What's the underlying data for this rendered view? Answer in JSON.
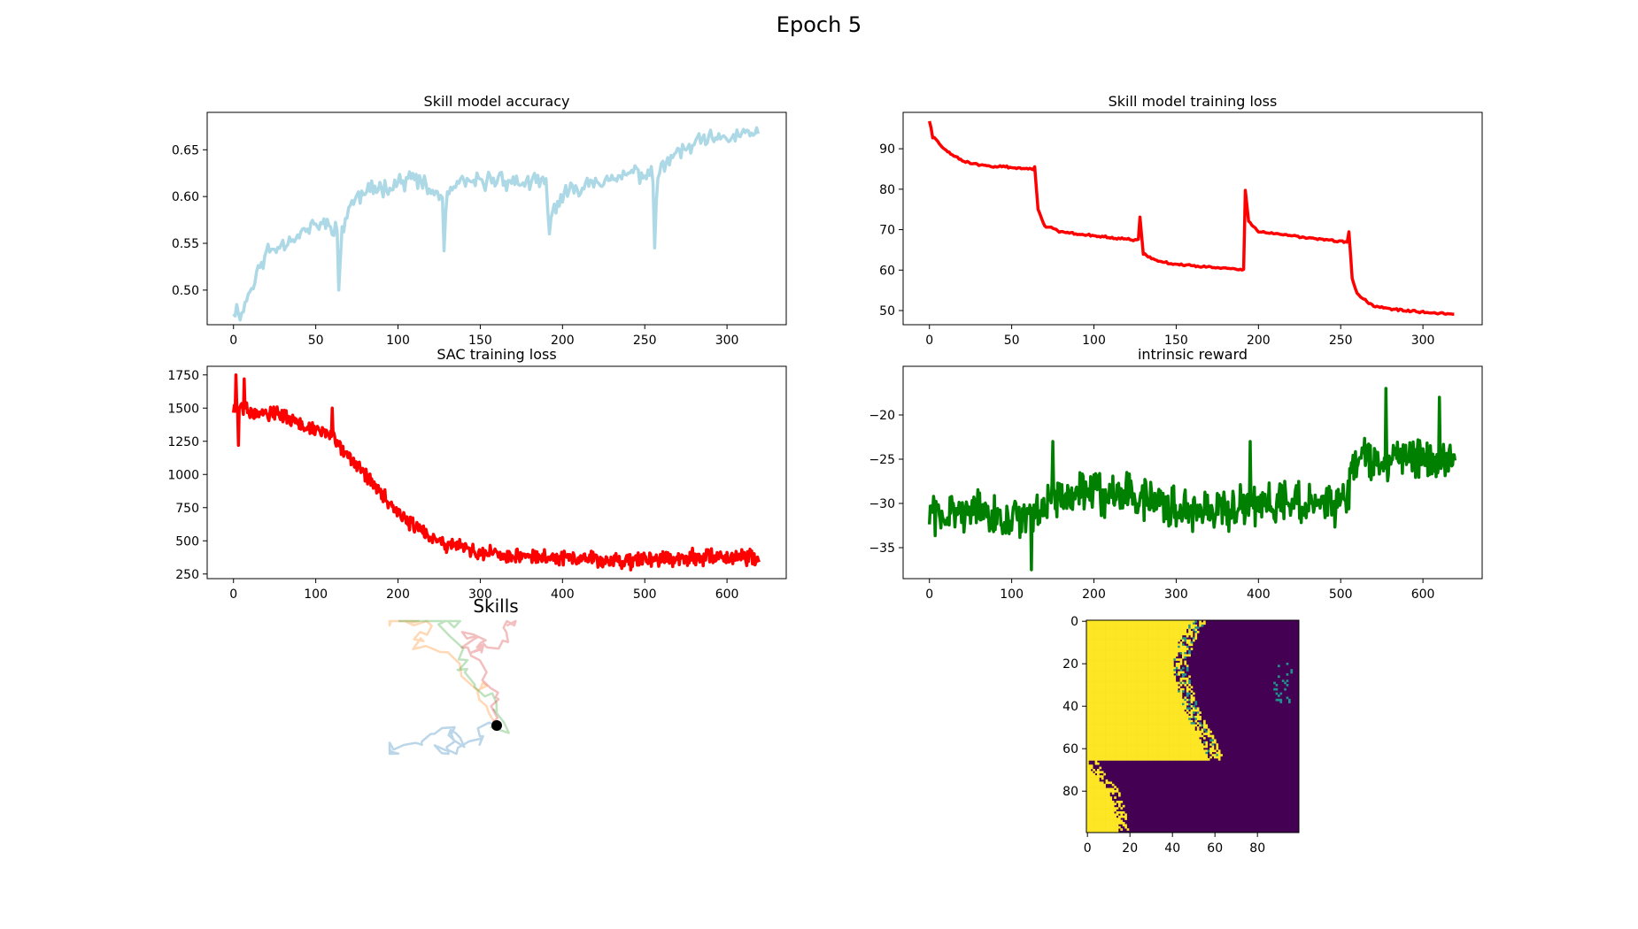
{
  "figure": {
    "title": "Epoch 5"
  },
  "chart_data": [
    {
      "id": "acc",
      "type": "line",
      "title": "Skill model accuracy",
      "color": "#add8e6",
      "xlim": [
        -16,
        336
      ],
      "ylim": [
        0.463,
        0.69
      ],
      "xticks": [
        0,
        50,
        100,
        150,
        200,
        250,
        300
      ],
      "yticks": [
        0.5,
        0.55,
        0.6,
        0.65
      ],
      "ytick_labels": [
        "0.50",
        "0.55",
        "0.60",
        "0.65"
      ],
      "n": 320,
      "keypoints": [
        [
          0,
          0.48
        ],
        [
          5,
          0.475
        ],
        [
          10,
          0.5
        ],
        [
          15,
          0.52
        ],
        [
          20,
          0.54
        ],
        [
          30,
          0.55
        ],
        [
          40,
          0.56
        ],
        [
          45,
          0.565
        ],
        [
          50,
          0.57
        ],
        [
          60,
          0.57
        ],
        [
          63,
          0.565
        ],
        [
          64,
          0.5
        ],
        [
          66,
          0.56
        ],
        [
          70,
          0.59
        ],
        [
          80,
          0.605
        ],
        [
          90,
          0.61
        ],
        [
          100,
          0.615
        ],
        [
          110,
          0.62
        ],
        [
          120,
          0.605
        ],
        [
          127,
          0.6
        ],
        [
          128,
          0.545
        ],
        [
          130,
          0.605
        ],
        [
          140,
          0.615
        ],
        [
          150,
          0.615
        ],
        [
          160,
          0.62
        ],
        [
          170,
          0.615
        ],
        [
          180,
          0.615
        ],
        [
          190,
          0.615
        ],
        [
          192,
          0.56
        ],
        [
          195,
          0.59
        ],
        [
          200,
          0.6
        ],
        [
          210,
          0.61
        ],
        [
          220,
          0.62
        ],
        [
          230,
          0.615
        ],
        [
          240,
          0.625
        ],
        [
          250,
          0.625
        ],
        [
          255,
          0.62
        ],
        [
          256,
          0.545
        ],
        [
          258,
          0.625
        ],
        [
          265,
          0.64
        ],
        [
          275,
          0.65
        ],
        [
          285,
          0.66
        ],
        [
          295,
          0.66
        ],
        [
          305,
          0.665
        ],
        [
          319,
          0.67
        ]
      ],
      "noise": 0.009,
      "spikes": [
        [
          64,
          0.5
        ],
        [
          128,
          0.542
        ],
        [
          192,
          0.56
        ],
        [
          256,
          0.545
        ]
      ],
      "seed": 11
    },
    {
      "id": "loss",
      "type": "line",
      "title": "Skill model training loss",
      "color": "#ff0000",
      "xlim": [
        -16,
        336
      ],
      "ylim": [
        46.5,
        99
      ],
      "xticks": [
        0,
        50,
        100,
        150,
        200,
        250,
        300
      ],
      "yticks": [
        50,
        60,
        70,
        80,
        90
      ],
      "ytick_labels": [
        "50",
        "60",
        "70",
        "80",
        "90"
      ],
      "n": 320,
      "keypoints": [
        [
          0,
          97
        ],
        [
          2,
          93
        ],
        [
          10,
          89.5
        ],
        [
          20,
          87
        ],
        [
          30,
          86
        ],
        [
          45,
          85.5
        ],
        [
          63,
          85
        ],
        [
          64,
          85.5
        ],
        [
          66,
          75
        ],
        [
          70,
          71
        ],
        [
          80,
          69.5
        ],
        [
          100,
          68.5
        ],
        [
          125,
          67.5
        ],
        [
          127,
          67.5
        ],
        [
          128,
          73
        ],
        [
          130,
          64
        ],
        [
          140,
          62
        ],
        [
          160,
          61
        ],
        [
          180,
          60.5
        ],
        [
          190,
          60.2
        ],
        [
          191,
          60
        ],
        [
          192,
          80
        ],
        [
          194,
          72
        ],
        [
          200,
          69.5
        ],
        [
          220,
          68.5
        ],
        [
          240,
          67.5
        ],
        [
          254,
          67
        ],
        [
          255,
          69.5
        ],
        [
          257,
          58
        ],
        [
          260,
          54
        ],
        [
          270,
          51
        ],
        [
          290,
          50
        ],
        [
          310,
          49.2
        ],
        [
          319,
          49
        ]
      ],
      "noise": 0.25,
      "spikes": [],
      "seed": 22
    },
    {
      "id": "sac",
      "type": "line",
      "title": "SAC training loss",
      "color": "#ff0000",
      "xlim": [
        -32,
        672
      ],
      "ylim": [
        215,
        1815
      ],
      "xticks": [
        0,
        100,
        200,
        300,
        400,
        500,
        600
      ],
      "yticks": [
        250,
        500,
        750,
        1000,
        1250,
        1500,
        1750
      ],
      "ytick_labels": [
        "250",
        "500",
        "750",
        "1000",
        "1250",
        "1500",
        "1750"
      ],
      "n": 640,
      "keypoints": [
        [
          0,
          1500
        ],
        [
          30,
          1480
        ],
        [
          60,
          1450
        ],
        [
          90,
          1350
        ],
        [
          120,
          1300
        ],
        [
          140,
          1150
        ],
        [
          160,
          1000
        ],
        [
          180,
          850
        ],
        [
          200,
          700
        ],
        [
          220,
          600
        ],
        [
          240,
          520
        ],
        [
          260,
          480
        ],
        [
          280,
          450
        ],
        [
          300,
          410
        ],
        [
          330,
          390
        ],
        [
          360,
          380
        ],
        [
          400,
          370
        ],
        [
          440,
          360
        ],
        [
          480,
          340
        ],
        [
          510,
          360
        ],
        [
          540,
          380
        ],
        [
          580,
          380
        ],
        [
          610,
          380
        ],
        [
          639,
          370
        ]
      ],
      "noise": 55,
      "spikes": [
        [
          3,
          1750
        ],
        [
          6,
          1220
        ],
        [
          13,
          1720
        ],
        [
          120,
          1500
        ]
      ],
      "seed": 33
    },
    {
      "id": "rew",
      "type": "line",
      "title": "intrinsic reward",
      "color": "#008000",
      "xlim": [
        -32,
        672
      ],
      "ylim": [
        -38.5,
        -14.5
      ],
      "xticks": [
        0,
        100,
        200,
        300,
        400,
        500,
        600
      ],
      "yticks": [
        -35,
        -30,
        -25,
        -20
      ],
      "ytick_labels": [
        "−35",
        "−30",
        "−25",
        "−20"
      ],
      "n": 640,
      "keypoints": [
        [
          0,
          -31
        ],
        [
          50,
          -31
        ],
        [
          100,
          -32
        ],
        [
          130,
          -31
        ],
        [
          150,
          -29
        ],
        [
          200,
          -29
        ],
        [
          250,
          -29
        ],
        [
          280,
          -30
        ],
        [
          310,
          -31
        ],
        [
          350,
          -31
        ],
        [
          400,
          -30
        ],
        [
          450,
          -30
        ],
        [
          500,
          -30
        ],
        [
          510,
          -29
        ],
        [
          515,
          -25
        ],
        [
          550,
          -25
        ],
        [
          600,
          -25
        ],
        [
          639,
          -25
        ]
      ],
      "noise": 2.2,
      "spikes": [
        [
          124,
          -37.5
        ],
        [
          150,
          -23
        ],
        [
          555,
          -17
        ],
        [
          620,
          -18
        ],
        [
          390,
          -23
        ]
      ],
      "seed": 44
    },
    {
      "id": "heat",
      "type": "heatmap",
      "xlim": [
        -0.5,
        99.5
      ],
      "ylim": [
        99.5,
        -0.5
      ],
      "xticks": [
        0,
        20,
        40,
        60,
        80
      ],
      "yticks": [
        0,
        20,
        40,
        60,
        80
      ],
      "ytick_labels": [
        "0",
        "20",
        "40",
        "60",
        "80"
      ],
      "low_color": "#440154",
      "high_color": "#fde725",
      "mid_color": "#21918c",
      "rows": 100,
      "cols": 100,
      "boundary_rows": [
        [
          0,
          52
        ],
        [
          10,
          46
        ],
        [
          20,
          43
        ],
        [
          30,
          45
        ],
        [
          40,
          48
        ],
        [
          45,
          50
        ],
        [
          50,
          53
        ],
        [
          55,
          56
        ],
        [
          60,
          58
        ],
        [
          65,
          60
        ],
        [
          70,
          0
        ]
      ],
      "left_region": [
        [
          40,
          4
        ],
        [
          45,
          2
        ],
        [
          50,
          1
        ],
        [
          55,
          0
        ],
        [
          60,
          0
        ],
        [
          65,
          1
        ],
        [
          70,
          4
        ],
        [
          75,
          8
        ],
        [
          80,
          12
        ],
        [
          85,
          14
        ],
        [
          90,
          15
        ],
        [
          95,
          16
        ],
        [
          99,
          17
        ]
      ],
      "seed": 55
    }
  ],
  "skills_panel": {
    "title": "Skills",
    "trajectories": [
      {
        "color": "#1f77b4",
        "seed": 1
      },
      {
        "color": "#ff7f0e",
        "seed": 2
      },
      {
        "color": "#2ca02c",
        "seed": 3
      },
      {
        "color": "#d62728",
        "seed": 4
      }
    ],
    "start_marker": {
      "color": "#000000"
    }
  }
}
